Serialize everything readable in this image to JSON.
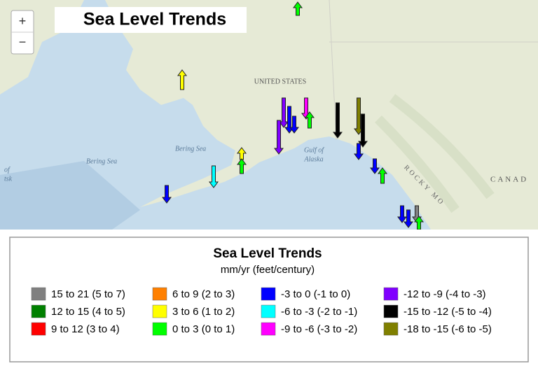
{
  "map": {
    "title": "Sea Level Trends",
    "zoom_in": "+",
    "zoom_out": "−",
    "labels": {
      "country": "UNITED STATES",
      "country_2": "CANAD",
      "bering_sea": "Bering Sea",
      "bering_sea_2": "Bering Sea",
      "gulf_line_1": "Gulf of",
      "gulf_line_2": "Alaska",
      "mountains": "ROCKY MO",
      "edge_1": "of",
      "edge_2": "tsk"
    }
  },
  "legend": {
    "title": "Sea Level Trends",
    "subtitle": "mm/yr (feet/century)",
    "items": [
      {
        "label": "15 to 21 (5 to 7)",
        "color": "#808080"
      },
      {
        "label": "12 to 15 (4 to 5)",
        "color": "#008000"
      },
      {
        "label": "9 to 12 (3 to 4)",
        "color": "#ff0000"
      },
      {
        "label": "6 to 9 (2 to 3)",
        "color": "#ff8000"
      },
      {
        "label": "3 to 6 (1 to 2)",
        "color": "#ffff00"
      },
      {
        "label": "0 to 3 (0 to 1)",
        "color": "#00ff00"
      },
      {
        "label": "-3 to  0 (-1 to  0)",
        "color": "#0000ff"
      },
      {
        "label": "-6 to -3 (-2 to -1)",
        "color": "#00ffff"
      },
      {
        "label": "-9 to -6 (-3 to -2)",
        "color": "#ff00ff"
      },
      {
        "label": "-12 to  -9 (-4 to -3)",
        "color": "#8000ff"
      },
      {
        "label": "-15 to -12 (-5 to -4)",
        "color": "#000000"
      },
      {
        "label": "-18 to -15 (-6 to -5)",
        "color": "#808000"
      }
    ]
  }
}
